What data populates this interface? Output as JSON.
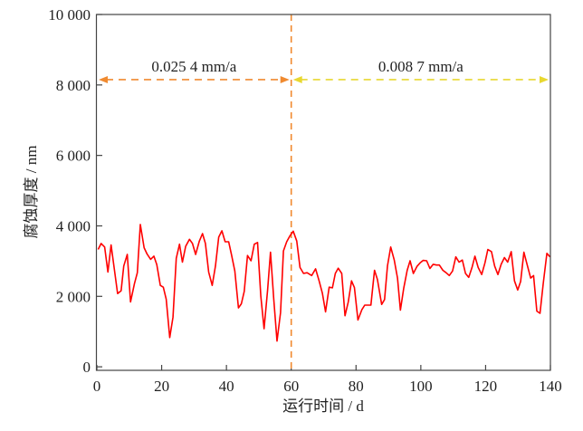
{
  "chart_data": {
    "type": "line",
    "xlabel": "运行时间 / d",
    "ylabel": "腐蚀厚度 / nm",
    "xlim": [
      0,
      140
    ],
    "ylim": [
      -100,
      10000
    ],
    "xticks": [
      0,
      20,
      40,
      60,
      80,
      100,
      120,
      140
    ],
    "xtick_labels": [
      "0",
      "20",
      "40",
      "60",
      "80",
      "100",
      "120",
      "140"
    ],
    "yticks": [
      0,
      2000,
      4000,
      6000,
      8000,
      10000
    ],
    "ytick_labels": [
      "0",
      "2 000",
      "4 000",
      "6 000",
      "8 000",
      "10 000"
    ],
    "grid": false,
    "series": [
      {
        "color": "#ff0000",
        "x": [
          0.4,
          1.3,
          2.4,
          3.4,
          4.4,
          6.4,
          7.5,
          8.3,
          9.4,
          10.4,
          11.6,
          12.5,
          13.4,
          14.6,
          15.5,
          16.6,
          17.6,
          18.5,
          19.6,
          20.5,
          21.4,
          22.5,
          23.5,
          24.5,
          25.5,
          26.4,
          27.4,
          28.6,
          29.5,
          30.5,
          31.6,
          32.6,
          33.5,
          34.5,
          35.6,
          36.6,
          37.6,
          38.6,
          39.6,
          40.7,
          41.6,
          42.6,
          43.7,
          44.6,
          45.5,
          46.5,
          47.6,
          48.6,
          49.6,
          50.6,
          51.6,
          52.7,
          53.6,
          54.6,
          55.6,
          56.7,
          57.6,
          58.6,
          59.6,
          60.6,
          61.7,
          62.7,
          63.8,
          64.9,
          66.3,
          67.5,
          68.6,
          69.6,
          70.6,
          71.7,
          72.7,
          73.6,
          74.5,
          75.6,
          76.6,
          77.6,
          78.6,
          79.5,
          80.6,
          81.8,
          82.7,
          84.6,
          85.7,
          86.6,
          87.9,
          88.8,
          89.7,
          90.7,
          91.8,
          92.8,
          93.7,
          94.7,
          95.8,
          96.7,
          97.7,
          98.8,
          99.8,
          100.7,
          101.8,
          102.8,
          103.8,
          104.8,
          105.7,
          106.8,
          107.8,
          108.8,
          109.8,
          110.8,
          111.8,
          112.8,
          113.8,
          114.8,
          115.8,
          116.7,
          117.7,
          118.8,
          119.8,
          120.7,
          121.8,
          122.8,
          123.8,
          124.8,
          125.8,
          126.8,
          127.9,
          128.9,
          129.9,
          130.8,
          131.8,
          132.8,
          133.9,
          134.8,
          135.8,
          136.8,
          137.8,
          138.9,
          139.9
        ],
        "y": [
          3330,
          3500,
          3400,
          2690,
          3460,
          2080,
          2160,
          2860,
          3190,
          1840,
          2360,
          2670,
          4040,
          3380,
          3200,
          3050,
          3140,
          2900,
          2310,
          2260,
          1920,
          830,
          1410,
          3080,
          3480,
          2970,
          3420,
          3620,
          3500,
          3190,
          3560,
          3780,
          3500,
          2690,
          2310,
          2860,
          3680,
          3860,
          3550,
          3550,
          3160,
          2720,
          1670,
          1790,
          2140,
          3160,
          3010,
          3480,
          3530,
          2010,
          1080,
          2180,
          3250,
          1920,
          730,
          1540,
          3290,
          3550,
          3720,
          3850,
          3570,
          2820,
          2650,
          2670,
          2590,
          2780,
          2440,
          2090,
          1560,
          2260,
          2240,
          2650,
          2800,
          2650,
          1450,
          1840,
          2440,
          2250,
          1330,
          1620,
          1750,
          1750,
          2740,
          2480,
          1770,
          1910,
          2860,
          3400,
          3030,
          2520,
          1610,
          2220,
          2740,
          3010,
          2650,
          2850,
          2950,
          3020,
          3010,
          2790,
          2910,
          2890,
          2890,
          2740,
          2670,
          2590,
          2720,
          3120,
          2970,
          3030,
          2650,
          2540,
          2820,
          3140,
          2820,
          2620,
          2950,
          3330,
          3270,
          2860,
          2620,
          2910,
          3100,
          2970,
          3270,
          2440,
          2180,
          2420,
          3250,
          2910,
          2520,
          2590,
          1580,
          1520,
          2370,
          3220,
          3120
        ]
      }
    ],
    "annotations": [
      {
        "text": "0.025 4 mm/a",
        "x_start": 0,
        "x_end": 60,
        "y": 8150,
        "color": "#f08a30"
      },
      {
        "text": "0.008 7 mm/a",
        "x_start": 60,
        "x_end": 140,
        "y": 8150,
        "color": "#e8d830"
      }
    ],
    "vline": {
      "x": 60,
      "color": "#f08a30"
    }
  }
}
